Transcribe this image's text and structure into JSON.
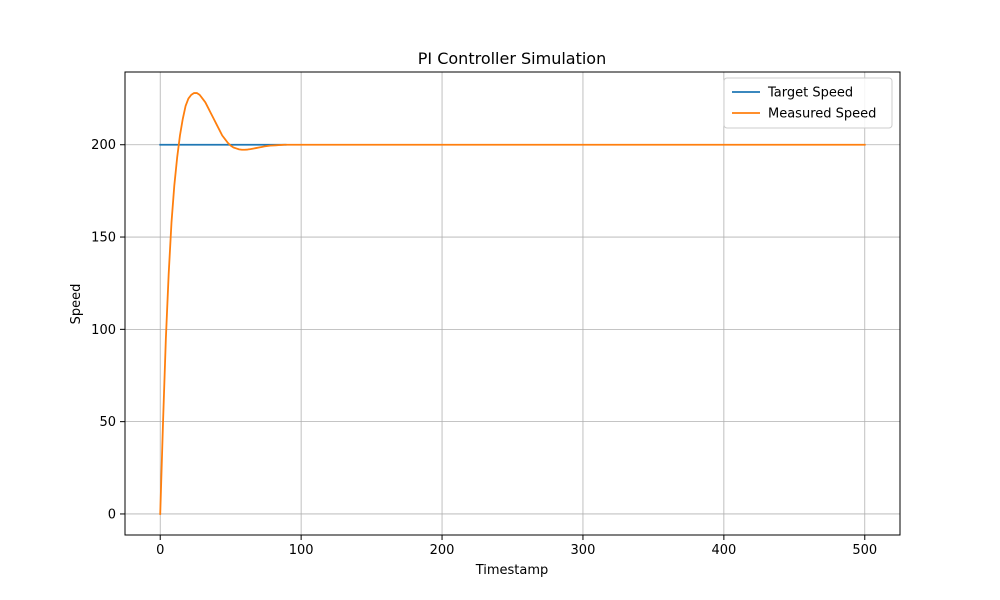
{
  "chart_data": {
    "type": "line",
    "title": "PI Controller Simulation",
    "xlabel": "Timestamp",
    "ylabel": "Speed",
    "xlim": [
      -25,
      525
    ],
    "ylim": [
      -11.4,
      239.4
    ],
    "xticks": [
      0,
      100,
      200,
      300,
      400,
      500
    ],
    "yticks": [
      0,
      50,
      100,
      150,
      200
    ],
    "grid": true,
    "legend_position": "top-right",
    "series": [
      {
        "name": "Target Speed",
        "color": "#1f77b4",
        "x": [
          0,
          89
        ],
        "y": [
          200,
          200
        ]
      },
      {
        "name": "Measured Speed",
        "color": "#ff7f0e",
        "x": [
          0,
          2,
          4,
          6,
          8,
          10,
          12,
          14,
          16,
          18,
          20,
          22,
          24,
          26,
          28,
          30,
          32,
          34,
          36,
          38,
          40,
          42,
          44,
          46,
          48,
          50,
          52,
          54,
          56,
          58,
          60,
          62,
          64,
          66,
          68,
          70,
          72,
          74,
          76,
          78,
          80,
          82,
          84,
          86,
          88,
          90,
          95,
          100,
          150,
          200,
          250,
          300,
          350,
          400,
          450,
          500
        ],
        "y": [
          0,
          50,
          95,
          130,
          158,
          178,
          193,
          205,
          214,
          221,
          225,
          227,
          228,
          228,
          227,
          225,
          223,
          220,
          217,
          214,
          211,
          208,
          205,
          203,
          201,
          199.5,
          198.5,
          198,
          197.5,
          197.3,
          197.3,
          197.4,
          197.6,
          197.9,
          198.2,
          198.5,
          198.8,
          199.1,
          199.3,
          199.5,
          199.6,
          199.7,
          199.8,
          199.9,
          200,
          200,
          200,
          200,
          200,
          200,
          200,
          200,
          200,
          200,
          200,
          200
        ]
      }
    ]
  }
}
